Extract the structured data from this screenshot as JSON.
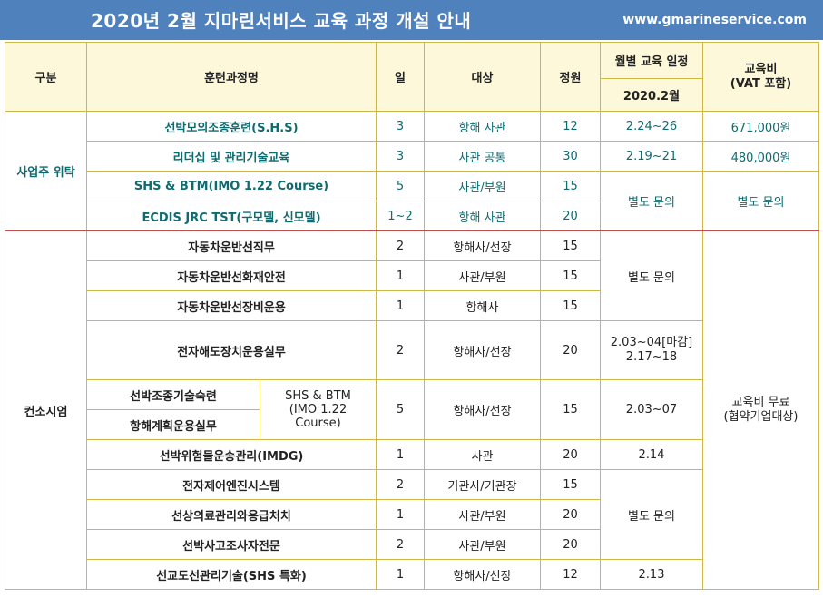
{
  "banner": {
    "title": "2020년 2월 지마린서비스 교육 과정 개설 안내",
    "url": "www.gmarineservice.com"
  },
  "header": {
    "category": "구분",
    "course": "훈련과정명",
    "days": "일",
    "target": "대상",
    "capacity": "정원",
    "schedule": "월별 교육 일정",
    "month": "2020.2월",
    "fee_line1": "교육비",
    "fee_line2": "(VAT 포함)"
  },
  "sections": {
    "s1_label": "사업주 위탁",
    "s2_label": "컨소시엄",
    "s1_inquiry_schedule": "별도 문의",
    "s1_inquiry_fee": "별도 문의",
    "s2_inquiry_a": "별도 문의",
    "s2_inquiry_b": "별도 문의",
    "s2_fee_line1": "교육비 무료",
    "s2_fee_line2": "(협약기업대상)",
    "shs_note_1": "SHS & BTM",
    "shs_note_2": "(IMO 1.22",
    "shs_note_3": "Course)"
  },
  "rows": [
    {
      "course": "선박모의조종훈련(S.H.S)",
      "days": "3",
      "target": "항해 사관",
      "capacity": "12",
      "date": "2.24~26",
      "fee": "671,000원"
    },
    {
      "course": "리더십 및 관리기술교육",
      "days": "3",
      "target": "사관 공통",
      "capacity": "30",
      "date": "2.19~21",
      "fee": "480,000원"
    },
    {
      "course": "SHS & BTM(IMO 1.22 Course)",
      "days": "5",
      "target": "사관/부원",
      "capacity": "15"
    },
    {
      "course": "ECDIS JRC TST(구모델, 신모델)",
      "days": "1~2",
      "target": "항해 사관",
      "capacity": "20"
    },
    {
      "course": "자동차운반선직무",
      "days": "2",
      "target": "항해사/선장",
      "capacity": "15"
    },
    {
      "course": "자동차운반선화재안전",
      "days": "1",
      "target": "사관/부원",
      "capacity": "15"
    },
    {
      "course": "자동차운반선장비운용",
      "days": "1",
      "target": "항해사",
      "capacity": "15"
    },
    {
      "course": "전자해도장치운용실무",
      "days": "2",
      "target": "항해사/선장",
      "capacity": "20",
      "date_line1": "2.03~04[마감]",
      "date_line2": "2.17~18"
    },
    {
      "course": "선박조종기술숙련",
      "days": "5",
      "target": "항해사/선장",
      "capacity": "15",
      "date": "2.03~07"
    },
    {
      "course": "항해계획운용실무"
    },
    {
      "course": "선박위험물운송관리(IMDG)",
      "days": "1",
      "target": "사관",
      "capacity": "20",
      "date": "2.14"
    },
    {
      "course": "전자제어엔진시스템",
      "days": "2",
      "target": "기관사/기관장",
      "capacity": "15"
    },
    {
      "course": "선상의료관리와응급처치",
      "days": "1",
      "target": "사관/부원",
      "capacity": "20"
    },
    {
      "course": "선박사고조사자전문",
      "days": "2",
      "target": "사관/부원",
      "capacity": "20"
    },
    {
      "course": "선교도선관리기술(SHS 특화)",
      "days": "1",
      "target": "항해사/선장",
      "capacity": "12",
      "date": "2.13"
    }
  ]
}
